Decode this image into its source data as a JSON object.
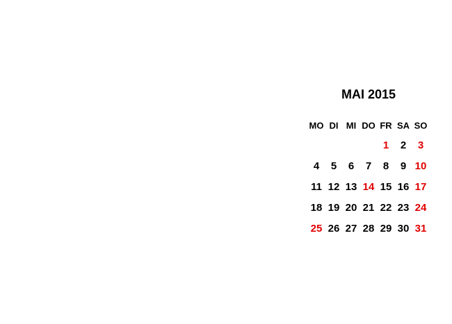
{
  "title": "MAI 2015",
  "weekdays": [
    "MO",
    "DI",
    "MI",
    "DO",
    "FR",
    "SA",
    "SO"
  ],
  "weeks": [
    [
      null,
      null,
      null,
      null,
      {
        "day": 1,
        "color": "#e00000"
      },
      {
        "day": 2,
        "color": "#000000"
      },
      {
        "day": 3,
        "color": "#e00000"
      }
    ],
    [
      {
        "day": 4,
        "color": "#000000"
      },
      {
        "day": 5,
        "color": "#000000"
      },
      {
        "day": 6,
        "color": "#000000"
      },
      {
        "day": 7,
        "color": "#000000"
      },
      {
        "day": 8,
        "color": "#000000"
      },
      {
        "day": 9,
        "color": "#000000"
      },
      {
        "day": 10,
        "color": "#e00000"
      }
    ],
    [
      {
        "day": 11,
        "color": "#000000"
      },
      {
        "day": 12,
        "color": "#000000"
      },
      {
        "day": 13,
        "color": "#000000"
      },
      {
        "day": 14,
        "color": "#e00000"
      },
      {
        "day": 15,
        "color": "#000000"
      },
      {
        "day": 16,
        "color": "#000000"
      },
      {
        "day": 17,
        "color": "#e00000"
      }
    ],
    [
      {
        "day": 18,
        "color": "#000000"
      },
      {
        "day": 19,
        "color": "#000000"
      },
      {
        "day": 20,
        "color": "#000000"
      },
      {
        "day": 21,
        "color": "#000000"
      },
      {
        "day": 22,
        "color": "#000000"
      },
      {
        "day": 23,
        "color": "#000000"
      },
      {
        "day": 24,
        "color": "#e00000"
      }
    ],
    [
      {
        "day": 25,
        "color": "#e00000"
      },
      {
        "day": 26,
        "color": "#000000"
      },
      {
        "day": 27,
        "color": "#000000"
      },
      {
        "day": 28,
        "color": "#000000"
      },
      {
        "day": 29,
        "color": "#000000"
      },
      {
        "day": 30,
        "color": "#000000"
      },
      {
        "day": 31,
        "color": "#e00000"
      }
    ]
  ]
}
